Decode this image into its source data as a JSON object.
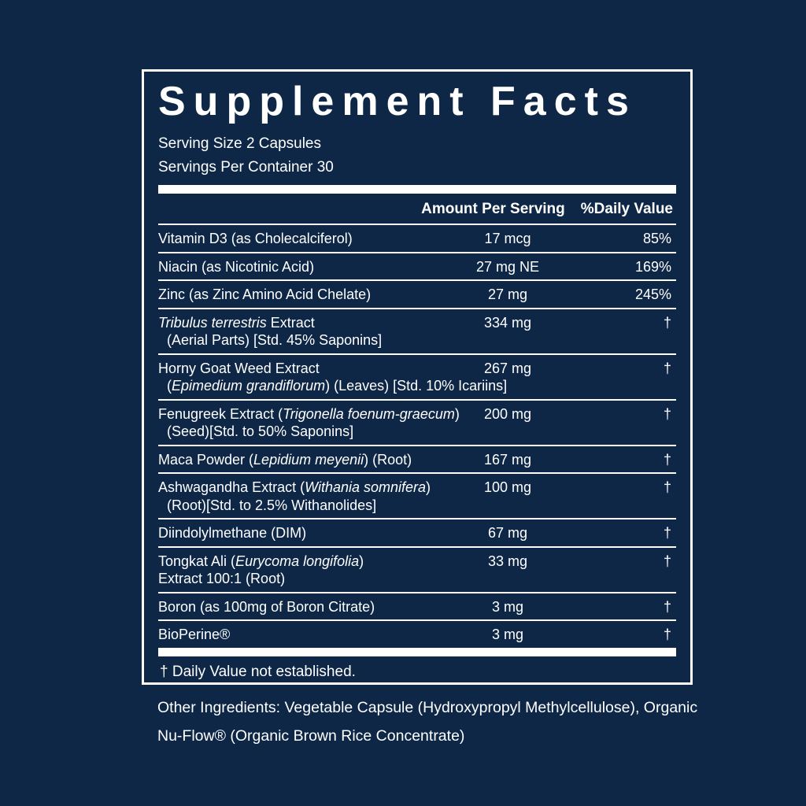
{
  "page": {
    "background_color": "#0e2747",
    "panel_border_color": "#ffffff",
    "text_color": "#ffffff"
  },
  "label": {
    "title": "Supplement Facts",
    "serving_size": "Serving Size 2 Capsules",
    "servings_per_container": "Servings Per Container 30",
    "columns": {
      "amount": "Amount Per Serving",
      "daily_value": "%Daily Value"
    },
    "rows": [
      {
        "lines": [
          {
            "indent": false,
            "segments": [
              {
                "text": "Vitamin D3 (as Cholecalciferol)",
                "italic": false
              }
            ]
          }
        ],
        "amount": "17 mcg",
        "dv": "85%"
      },
      {
        "lines": [
          {
            "indent": false,
            "segments": [
              {
                "text": "Niacin (as Nicotinic Acid)",
                "italic": false
              }
            ]
          }
        ],
        "amount": "27 mg NE",
        "dv": "169%"
      },
      {
        "lines": [
          {
            "indent": false,
            "segments": [
              {
                "text": "Zinc (as Zinc Amino Acid Chelate)",
                "italic": false
              }
            ]
          }
        ],
        "amount": "27 mg",
        "dv": "245%"
      },
      {
        "lines": [
          {
            "indent": false,
            "segments": [
              {
                "text": "Tribulus terrestris",
                "italic": true
              },
              {
                "text": " Extract",
                "italic": false
              }
            ]
          },
          {
            "indent": true,
            "segments": [
              {
                "text": "(Aerial Parts) [Std. 45% Saponins]",
                "italic": false
              }
            ]
          }
        ],
        "amount": "334 mg",
        "dv": "†"
      },
      {
        "lines": [
          {
            "indent": false,
            "segments": [
              {
                "text": "Horny Goat Weed Extract",
                "italic": false
              }
            ]
          },
          {
            "indent": true,
            "segments": [
              {
                "text": "(",
                "italic": false
              },
              {
                "text": "Epimedium grandiflorum",
                "italic": true
              },
              {
                "text": ") (Leaves) [Std. 10% Icariins]",
                "italic": false
              }
            ]
          }
        ],
        "amount": "267 mg",
        "dv": "†"
      },
      {
        "lines": [
          {
            "indent": false,
            "segments": [
              {
                "text": "Fenugreek Extract (",
                "italic": false
              },
              {
                "text": "Trigonella foenum-graecum",
                "italic": true
              },
              {
                "text": ")",
                "italic": false
              }
            ]
          },
          {
            "indent": true,
            "segments": [
              {
                "text": "(Seed)[Std. to 50% Saponins]",
                "italic": false
              }
            ]
          }
        ],
        "amount": "200 mg",
        "dv": "†"
      },
      {
        "lines": [
          {
            "indent": false,
            "segments": [
              {
                "text": "Maca Powder (",
                "italic": false
              },
              {
                "text": "Lepidium meyenii",
                "italic": true
              },
              {
                "text": ") (Root)",
                "italic": false
              }
            ]
          }
        ],
        "amount": "167 mg",
        "dv": "†"
      },
      {
        "lines": [
          {
            "indent": false,
            "segments": [
              {
                "text": "Ashwagandha Extract (",
                "italic": false
              },
              {
                "text": "Withania somnifera",
                "italic": true
              },
              {
                "text": ")",
                "italic": false
              }
            ]
          },
          {
            "indent": true,
            "segments": [
              {
                "text": "(Root)[Std. to 2.5% Withanolides]",
                "italic": false
              }
            ]
          }
        ],
        "amount": "100 mg",
        "dv": "†"
      },
      {
        "lines": [
          {
            "indent": false,
            "segments": [
              {
                "text": "Diindolylmethane (DIM)",
                "italic": false
              }
            ]
          }
        ],
        "amount": "67 mg",
        "dv": "†"
      },
      {
        "lines": [
          {
            "indent": false,
            "segments": [
              {
                "text": "Tongkat Ali (",
                "italic": false
              },
              {
                "text": "Eurycoma longifolia",
                "italic": true
              },
              {
                "text": ")",
                "italic": false
              }
            ]
          },
          {
            "indent": false,
            "segments": [
              {
                "text": "Extract 100:1 (Root)",
                "italic": false
              }
            ]
          }
        ],
        "amount": "33 mg",
        "dv": "†"
      },
      {
        "lines": [
          {
            "indent": false,
            "segments": [
              {
                "text": "Boron (as 100mg of Boron Citrate)",
                "italic": false
              }
            ]
          }
        ],
        "amount": "3 mg",
        "dv": "†"
      },
      {
        "lines": [
          {
            "indent": false,
            "segments": [
              {
                "text": "BioPerine®",
                "italic": false
              }
            ]
          }
        ],
        "amount": "3 mg",
        "dv": "†"
      }
    ],
    "footnote": "† Daily Value not established."
  },
  "other_ingredients": {
    "line1": "Other Ingredients: Vegetable Capsule (Hydroxypropyl Methylcellulose), Organic",
    "line2": "Nu-Flow® (Organic Brown Rice Concentrate)"
  }
}
